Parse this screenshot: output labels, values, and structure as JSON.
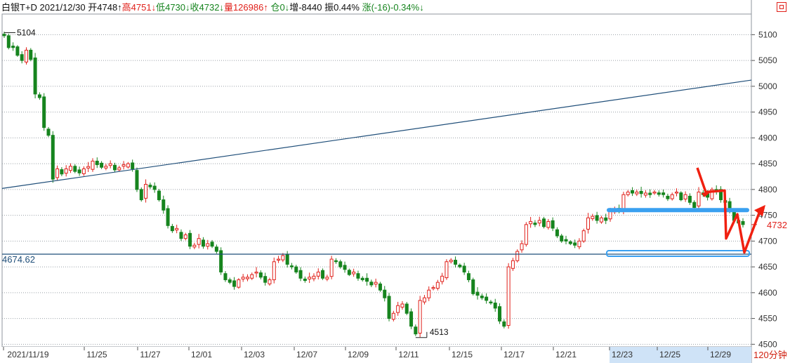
{
  "header": {
    "instrument": "白银T+D",
    "date": "2021/12/30",
    "open": "开4748↑",
    "high": "高4751↓",
    "low": "低4730↓",
    "close": "收4732↓",
    "volume": "量126986↑",
    "position": "仓0↓",
    "increase": "增-8440",
    "amplitude": "振0.44%",
    "change": "涨(-16)-0.34%↓"
  },
  "period_label": "120分钟",
  "colors": {
    "up": "#e0201a",
    "down": "#16841e",
    "gridline": "#9aa0a8",
    "trendline": "#1f4e79",
    "support_band": "#3aa0f0",
    "arrow": "#f02010"
  },
  "chart_data": {
    "type": "candlestick",
    "y_ticks": [
      5100,
      5050,
      5000,
      4950,
      4900,
      4850,
      4800,
      4750,
      4700,
      4650,
      4600,
      4550,
      4500
    ],
    "ylim": [
      4495,
      5140
    ],
    "x_tick_labels": [
      "2021/11/19",
      "11/25",
      "11/27",
      "12/01",
      "12/03",
      "12/07",
      "12/09",
      "12/11",
      "12/15",
      "12/17",
      "12/21",
      "12/23",
      "12/25",
      "12/29"
    ],
    "annotations": {
      "max_label": "5104",
      "max_value": 5104,
      "min_label": "4513",
      "min_value": 4513,
      "horizontal_line_label": "4674.62",
      "horizontal_line_value": 4674.62,
      "last_price_label": "4732",
      "last_price_value": 4732
    },
    "trend_line": {
      "from_value": 4802,
      "to_value": 5012
    },
    "support_band_value": 4760,
    "target_band_value": 4676,
    "closes": [
      5098,
      5075,
      5078,
      5060,
      5050,
      5070,
      5052,
      4985,
      4978,
      4920,
      4905,
      4820,
      4840,
      4830,
      4840,
      4845,
      4835,
      4832,
      4840,
      4842,
      4855,
      4848,
      4843,
      4845,
      4850,
      4838,
      4842,
      4845,
      4850,
      4840,
      4800,
      4780,
      4810,
      4805,
      4800,
      4780,
      4760,
      4730,
      4720,
      4720,
      4705,
      4712,
      4690,
      4692,
      4705,
      4690,
      4695,
      4690,
      4680,
      4640,
      4625,
      4620,
      4612,
      4625,
      4630,
      4628,
      4635,
      4640,
      4630,
      4620,
      4625,
      4660,
      4665,
      4672,
      4655,
      4650,
      4640,
      4628,
      4625,
      4630,
      4632,
      4640,
      4628,
      4630,
      4665,
      4660,
      4650,
      4645,
      4635,
      4640,
      4628,
      4625,
      4622,
      4615,
      4620,
      4605,
      4590,
      4550,
      4560,
      4575,
      4578,
      4560,
      4535,
      4520,
      4585,
      4590,
      4605,
      4610,
      4620,
      4632,
      4660,
      4660,
      4655,
      4650,
      4640,
      4625,
      4598,
      4595,
      4590,
      4585,
      4580,
      4570,
      4545,
      4535,
      4650,
      4662,
      4680,
      4695,
      4732,
      4738,
      4735,
      4740,
      4728,
      4738,
      4725,
      4710,
      4700,
      4700,
      4695,
      4692,
      4700,
      4720,
      4745,
      4748,
      4740,
      4745,
      4740,
      4758,
      4762,
      4760,
      4790,
      4795,
      4793,
      4795,
      4792,
      4793,
      4790,
      4795,
      4792,
      4790,
      4782,
      4790,
      4795,
      4780,
      4790,
      4775,
      4765,
      4795,
      4790,
      4785,
      4800,
      4797,
      4780,
      4775,
      4760,
      4740,
      4735,
      4732
    ]
  }
}
